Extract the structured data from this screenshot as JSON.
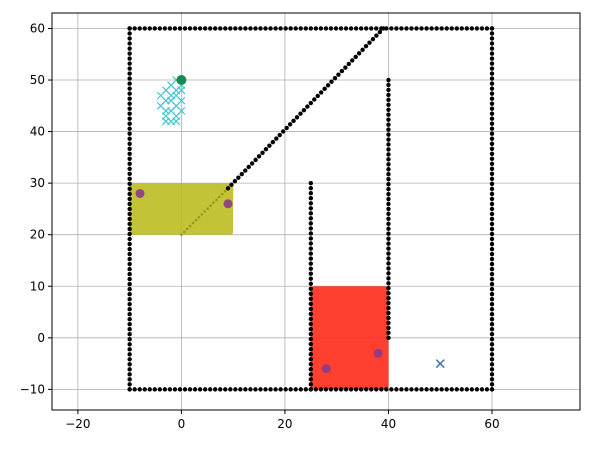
{
  "chart_data": {
    "type": "scatter",
    "title": "",
    "xlabel": "",
    "ylabel": "",
    "xlim": [
      -25,
      77
    ],
    "ylim": [
      -14,
      63
    ],
    "grid": true,
    "x_ticks": [
      -20,
      0,
      20,
      40,
      60
    ],
    "y_ticks": [
      -10,
      0,
      10,
      20,
      30,
      40,
      50,
      60
    ],
    "walls": [
      {
        "from": [
          -10,
          -10
        ],
        "to": [
          60,
          -10
        ]
      },
      {
        "from": [
          60,
          -10
        ],
        "to": [
          60,
          60
        ]
      },
      {
        "from": [
          60,
          60
        ],
        "to": [
          -10,
          60
        ]
      },
      {
        "from": [
          -10,
          60
        ],
        "to": [
          -10,
          -10
        ]
      },
      {
        "from": [
          25,
          -10
        ],
        "to": [
          25,
          30
        ]
      },
      {
        "from": [
          40,
          0
        ],
        "to": [
          40,
          50
        ]
      },
      {
        "from": [
          9,
          29
        ],
        "to": [
          39,
          60
        ]
      }
    ],
    "faint_path": {
      "from": [
        0,
        20
      ],
      "to": [
        9,
        29
      ]
    },
    "regions": [
      {
        "x": [
          -10,
          10
        ],
        "y": [
          20,
          30
        ],
        "color": "#bcbd22"
      },
      {
        "x": [
          25,
          40
        ],
        "y": [
          -10,
          10
        ],
        "color": "#ff2a1a"
      }
    ],
    "purple_points": [
      [
        -8,
        28
      ],
      [
        9,
        26
      ],
      [
        28,
        -6
      ],
      [
        38,
        -3
      ]
    ],
    "cyan_points": [
      [
        -4,
        45
      ],
      [
        -3,
        46
      ],
      [
        -2,
        47
      ],
      [
        -1,
        48
      ],
      [
        0,
        49
      ],
      [
        -1,
        50
      ],
      [
        -3,
        44
      ],
      [
        -2,
        44
      ],
      [
        -1,
        45
      ],
      [
        -2,
        42
      ],
      [
        -3,
        42
      ],
      [
        -1,
        43
      ],
      [
        0,
        46
      ],
      [
        -1,
        47
      ],
      [
        -2,
        49
      ],
      [
        -3,
        48
      ],
      [
        0,
        44
      ],
      [
        -2,
        46
      ],
      [
        -3,
        43
      ],
      [
        -1,
        42
      ],
      [
        0,
        48
      ],
      [
        -4,
        47
      ]
    ],
    "start_point": [
      0,
      50
    ],
    "goal_point": [
      50,
      -5
    ],
    "colors": {
      "wall": "#000000",
      "purple": "#8b3a8b",
      "cyan": "#3fc8d0",
      "start": "#1a8a55",
      "goal": "#3b6fb6",
      "grid": "#b0b0b0"
    }
  }
}
